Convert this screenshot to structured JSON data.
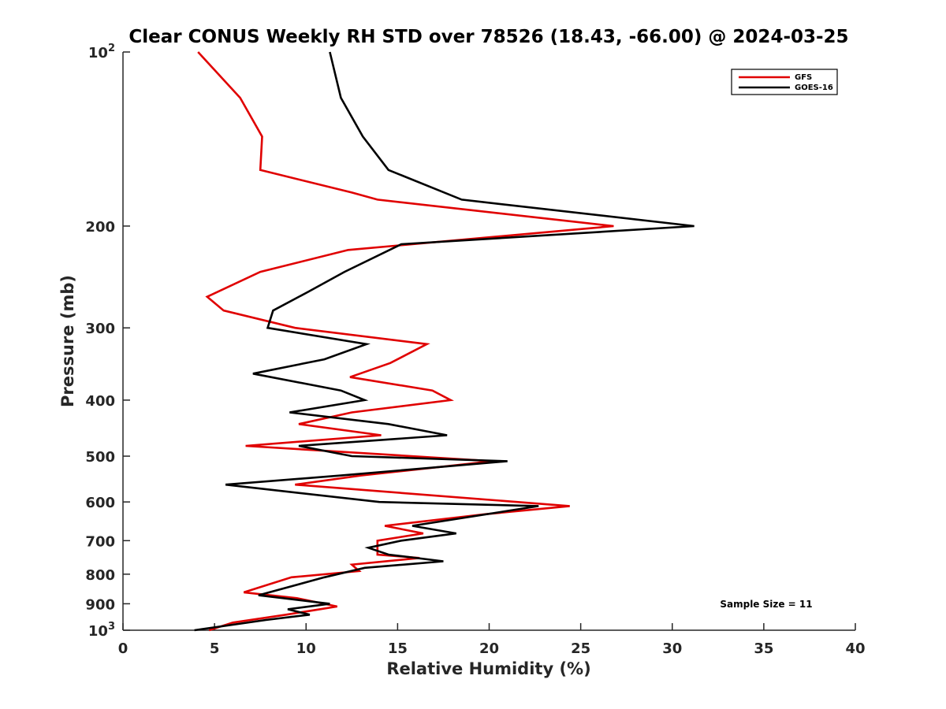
{
  "chart_data": {
    "type": "line",
    "title": "Clear CONUS Weekly RH STD over 78526 (18.43, -66.00) @ 2024-03-25",
    "xlabel": "Relative Humidity (%)",
    "ylabel": "Pressure (mb)",
    "xlim": [
      0,
      40
    ],
    "ylim": [
      1000,
      100
    ],
    "y_scale": "log",
    "y_reversed": true,
    "grid": false,
    "legend_position": "top-right",
    "x_ticks": [
      {
        "value": 0,
        "label": "0"
      },
      {
        "value": 5,
        "label": "5"
      },
      {
        "value": 10,
        "label": "10"
      },
      {
        "value": 15,
        "label": "15"
      },
      {
        "value": 20,
        "label": "20"
      },
      {
        "value": 25,
        "label": "25"
      },
      {
        "value": 30,
        "label": "30"
      },
      {
        "value": 35,
        "label": "35"
      },
      {
        "value": 40,
        "label": "40"
      }
    ],
    "y_ticks": [
      {
        "value": 100,
        "label": "10",
        "sup": "2"
      },
      {
        "value": 200,
        "label": "200",
        "sup": ""
      },
      {
        "value": 300,
        "label": "300",
        "sup": ""
      },
      {
        "value": 400,
        "label": "400",
        "sup": ""
      },
      {
        "value": 500,
        "label": "500",
        "sup": ""
      },
      {
        "value": 600,
        "label": "600",
        "sup": ""
      },
      {
        "value": 700,
        "label": "700",
        "sup": ""
      },
      {
        "value": 800,
        "label": "800",
        "sup": ""
      },
      {
        "value": 900,
        "label": "900",
        "sup": ""
      },
      {
        "value": 1000,
        "label": "10",
        "sup": "3"
      }
    ],
    "series": [
      {
        "name": "GFS",
        "color": "#e00000",
        "points": [
          [
            4.1,
            100
          ],
          [
            6.4,
            120
          ],
          [
            7.6,
            140
          ],
          [
            7.5,
            160
          ],
          [
            12.5,
            175
          ],
          [
            13.9,
            180
          ],
          [
            26.8,
            200
          ],
          [
            12.3,
            220
          ],
          [
            7.5,
            240
          ],
          [
            4.6,
            265
          ],
          [
            5.5,
            280
          ],
          [
            9.4,
            300
          ],
          [
            16.6,
            320
          ],
          [
            14.6,
            345
          ],
          [
            12.4,
            365
          ],
          [
            16.9,
            385
          ],
          [
            17.9,
            400
          ],
          [
            12.5,
            420
          ],
          [
            9.6,
            440
          ],
          [
            14.1,
            460
          ],
          [
            6.7,
            480
          ],
          [
            20.2,
            510
          ],
          [
            13.0,
            540
          ],
          [
            9.4,
            560
          ],
          [
            24.4,
            610
          ],
          [
            19.8,
            630
          ],
          [
            14.3,
            660
          ],
          [
            16.4,
            680
          ],
          [
            13.9,
            700
          ],
          [
            13.9,
            740
          ],
          [
            16.2,
            750
          ],
          [
            12.5,
            770
          ],
          [
            12.9,
            790
          ],
          [
            9.2,
            810
          ],
          [
            6.6,
            860
          ],
          [
            9.5,
            880
          ],
          [
            11.7,
            910
          ],
          [
            8.9,
            940
          ],
          [
            6.0,
            970
          ],
          [
            4.7,
            1000
          ]
        ]
      },
      {
        "name": "GOES-16",
        "color": "#000000",
        "points": [
          [
            11.3,
            100
          ],
          [
            11.9,
            120
          ],
          [
            13.1,
            140
          ],
          [
            14.5,
            160
          ],
          [
            18.5,
            180
          ],
          [
            31.2,
            200
          ],
          [
            15.2,
            215
          ],
          [
            12.1,
            240
          ],
          [
            10.1,
            260
          ],
          [
            8.2,
            280
          ],
          [
            7.9,
            300
          ],
          [
            13.3,
            320
          ],
          [
            11.0,
            340
          ],
          [
            7.1,
            360
          ],
          [
            11.9,
            385
          ],
          [
            13.2,
            400
          ],
          [
            9.1,
            420
          ],
          [
            14.5,
            440
          ],
          [
            17.7,
            460
          ],
          [
            9.6,
            480
          ],
          [
            12.5,
            500
          ],
          [
            21.0,
            510
          ],
          [
            11.9,
            540
          ],
          [
            5.6,
            560
          ],
          [
            14.0,
            600
          ],
          [
            22.7,
            610
          ],
          [
            15.8,
            660
          ],
          [
            18.2,
            680
          ],
          [
            15.2,
            700
          ],
          [
            13.4,
            720
          ],
          [
            14.5,
            740
          ],
          [
            17.5,
            760
          ],
          [
            13.2,
            780
          ],
          [
            11.0,
            810
          ],
          [
            7.4,
            870
          ],
          [
            11.3,
            900
          ],
          [
            9.0,
            920
          ],
          [
            10.2,
            940
          ],
          [
            7.8,
            960
          ],
          [
            3.9,
            1000
          ]
        ]
      }
    ],
    "annotation": "Sample Size = 11"
  }
}
